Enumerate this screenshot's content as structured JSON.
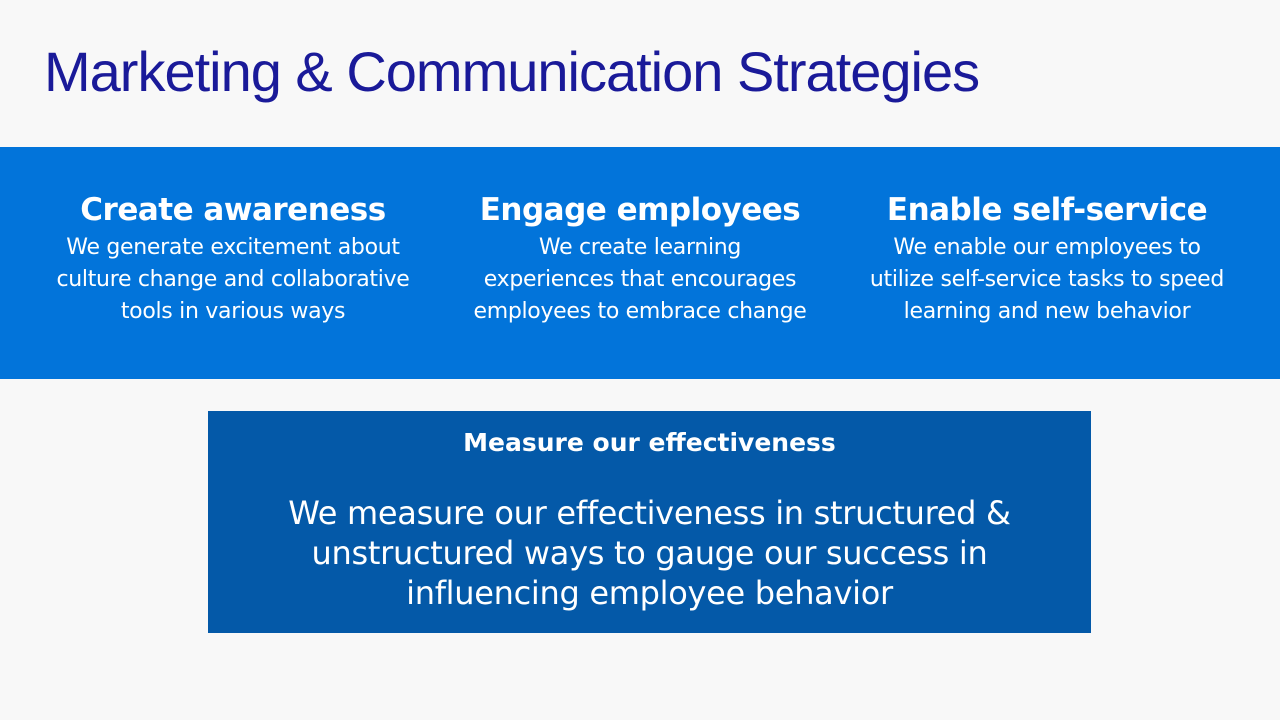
{
  "slide": {
    "title": "Marketing & Communication Strategies"
  },
  "columns": [
    {
      "heading": "Create awareness",
      "text": "We generate excitement about\nculture change and collaborative\ntools in various ways"
    },
    {
      "heading": "Engage employees",
      "text": "We create learning\nexperiences that encourages\nemployees to embrace change"
    },
    {
      "heading": "Enable self-service",
      "text": "We enable our employees to\nutilize  self-service tasks to speed\nlearning and new behavior"
    }
  ],
  "measure": {
    "heading": "Measure our effectiveness",
    "text": "We measure our effectiveness in structured &\nunstructured ways to gauge our success in\ninfluencing employee behavior"
  },
  "colors": {
    "title": "#1a1a99",
    "band": "#0274da",
    "measure_box": "#0459a8",
    "background": "#f8f8f8"
  }
}
